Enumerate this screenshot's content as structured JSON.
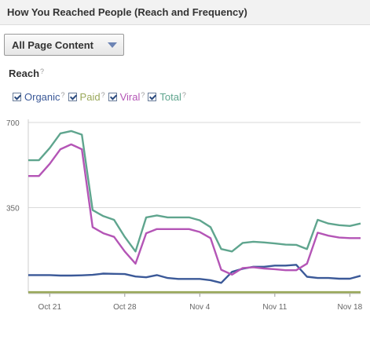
{
  "header": {
    "title": "How You Reached People (Reach and Frequency)"
  },
  "filter": {
    "selected": "All Page Content"
  },
  "section": {
    "title": "Reach",
    "help": "?"
  },
  "legend": {
    "help": "?",
    "items": [
      {
        "label": "Organic",
        "color": "#3b5998",
        "checked": true
      },
      {
        "label": "Paid",
        "color": "#9aa85a",
        "checked": true
      },
      {
        "label": "Viral",
        "color": "#b455b6",
        "checked": true
      },
      {
        "label": "Total",
        "color": "#5fa58e",
        "checked": true
      }
    ]
  },
  "chart_data": {
    "type": "line",
    "title": "",
    "xlabel": "",
    "ylabel": "",
    "ylim": [
      0,
      700
    ],
    "yticks": [
      700,
      350
    ],
    "grid": true,
    "x": [
      "Oct 19",
      "Oct 20",
      "Oct 21",
      "Oct 22",
      "Oct 23",
      "Oct 24",
      "Oct 25",
      "Oct 26",
      "Oct 27",
      "Oct 28",
      "Oct 29",
      "Oct 30",
      "Oct 31",
      "Nov 1",
      "Nov 2",
      "Nov 3",
      "Nov 4",
      "Nov 5",
      "Nov 6",
      "Nov 7",
      "Nov 8",
      "Nov 9",
      "Nov 10",
      "Nov 11",
      "Nov 12",
      "Nov 13",
      "Nov 14",
      "Nov 15",
      "Nov 16",
      "Nov 17",
      "Nov 18",
      "Nov 19"
    ],
    "xtick_labels": [
      "Oct 21",
      "Oct 28",
      "Nov 4",
      "Nov 11",
      "Nov 18"
    ],
    "series": [
      {
        "name": "Organic",
        "color": "#3b5998",
        "values": [
          73,
          73,
          73,
          71,
          71,
          72,
          74,
          79,
          78,
          77,
          67,
          64,
          73,
          61,
          57,
          57,
          57,
          52,
          41,
          86,
          99,
          107,
          107,
          112,
          112,
          115,
          66,
          61,
          61,
          58,
          58,
          70
        ]
      },
      {
        "name": "Paid",
        "color": "#9aa85a",
        "values": [
          2,
          2,
          2,
          2,
          2,
          2,
          2,
          2,
          2,
          2,
          2,
          2,
          2,
          2,
          2,
          2,
          2,
          2,
          2,
          2,
          2,
          2,
          2,
          2,
          2,
          2,
          2,
          2,
          2,
          2,
          2,
          2
        ]
      },
      {
        "name": "Viral",
        "color": "#b455b6",
        "values": [
          480,
          480,
          530,
          590,
          610,
          590,
          270,
          245,
          230,
          170,
          120,
          245,
          262,
          262,
          262,
          262,
          250,
          225,
          95,
          75,
          102,
          105,
          100,
          97,
          93,
          93,
          120,
          247,
          235,
          227,
          225,
          225
        ]
      },
      {
        "name": "Total",
        "color": "#5fa58e",
        "values": [
          545,
          545,
          595,
          655,
          665,
          650,
          340,
          315,
          300,
          230,
          170,
          310,
          318,
          310,
          310,
          310,
          298,
          270,
          180,
          170,
          205,
          210,
          207,
          203,
          198,
          197,
          180,
          300,
          285,
          278,
          275,
          285
        ]
      }
    ]
  }
}
